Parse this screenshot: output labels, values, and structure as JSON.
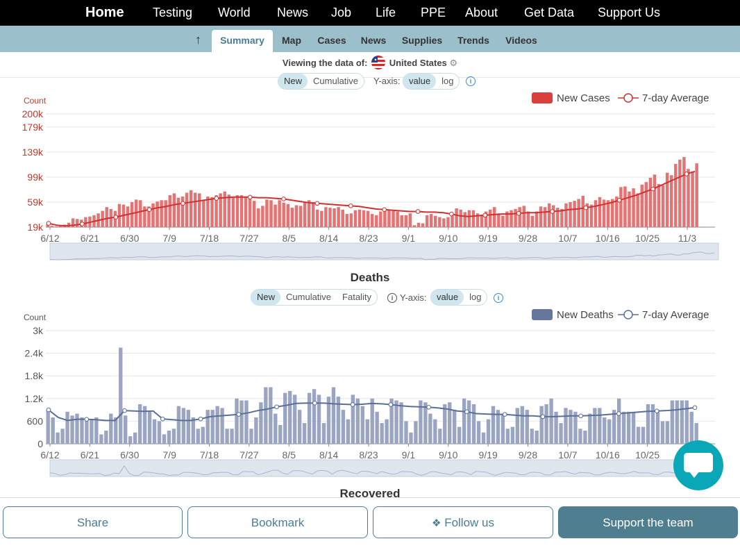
{
  "nav": {
    "items": [
      "Home",
      "Testing",
      "World",
      "News",
      "Job",
      "Life",
      "PPE",
      "About",
      "Get Data",
      "Support Us"
    ]
  },
  "subnav": {
    "tabs": [
      "Summary",
      "Map",
      "Cases",
      "News",
      "Supplies",
      "Trends",
      "Videos"
    ],
    "active": "Summary"
  },
  "viewing": {
    "prefix": "Viewing the data of:",
    "country": "United States"
  },
  "cases_panel": {
    "toggle_mode": [
      "New",
      "Cumulative"
    ],
    "yaxis_label": "Y-axis:",
    "toggle_scale": [
      "value",
      "log"
    ],
    "legend": [
      "New Cases",
      "7-day Average"
    ],
    "colors": {
      "bar": "#e57373",
      "line": "#d32f2f",
      "legend_bar": "#d9403b"
    }
  },
  "deaths_panel": {
    "title": "Deaths",
    "toggle_mode": [
      "New",
      "Cumulative",
      "Fatality"
    ],
    "yaxis_label": "Y-axis:",
    "toggle_scale": [
      "value",
      "log"
    ],
    "legend": [
      "New Deaths",
      "7-day Average"
    ],
    "colors": {
      "bar": "#9aa5c4",
      "line": "#5a6f96",
      "legend_bar": "#66769d"
    }
  },
  "recovered_title": "Recovered",
  "buttons": {
    "share": "Share",
    "bookmark": "Bookmark",
    "follow": "Follow us",
    "support": "Support the team"
  },
  "chart_data": [
    {
      "type": "bar",
      "ylabel": "Count",
      "yticks": [
        "19k",
        "59k",
        "99k",
        "139k",
        "179k",
        "200k"
      ],
      "ytick_values": [
        19000,
        59000,
        99000,
        139000,
        179000,
        200000
      ],
      "ylim": [
        19000,
        200000
      ],
      "x_tick_labels": [
        "6/12",
        "6/21",
        "6/30",
        "7/9",
        "7/18",
        "7/27",
        "8/5",
        "8/14",
        "8/23",
        "9/1",
        "9/10",
        "9/19",
        "9/28",
        "10/7",
        "10/16",
        "10/25",
        "11/3"
      ],
      "series": [
        {
          "name": "New Cases",
          "values": [
            25000,
            21000,
            20000,
            21000,
            23000,
            26000,
            33000,
            32000,
            31000,
            35000,
            36000,
            38000,
            41000,
            45000,
            51000,
            48000,
            45000,
            56000,
            55000,
            52000,
            59000,
            63000,
            62000,
            52000,
            52000,
            57000,
            60000,
            62000,
            62000,
            70000,
            73000,
            66000,
            68000,
            74000,
            78000,
            74000,
            73000,
            63000,
            68000,
            67000,
            70000,
            73000,
            76000,
            71000,
            66000,
            70000,
            70000,
            68000,
            64000,
            61000,
            49000,
            53000,
            63000,
            62000,
            55000,
            62000,
            58000,
            56000,
            50000,
            54000,
            53000,
            58000,
            62000,
            59000,
            47000,
            45000,
            51000,
            50000,
            49000,
            51000,
            47000,
            40000,
            41000,
            46000,
            47000,
            46000,
            45000,
            40000,
            38000,
            44000,
            48000,
            46000,
            45000,
            44000,
            38000,
            38000,
            41000,
            22000,
            26000,
            25000,
            38000,
            40000,
            37000,
            35000,
            33000,
            35000,
            40000,
            49000,
            47000,
            43000,
            46000,
            46000,
            41000,
            39000,
            44000,
            47000,
            51000,
            41000,
            37000,
            44000,
            46000,
            48000,
            51000,
            53000,
            44000,
            37000,
            44000,
            52000,
            51000,
            57000,
            54000,
            50000,
            48000,
            57000,
            59000,
            61000,
            64000,
            69000,
            57000,
            55000,
            62000,
            67000,
            63000,
            62000,
            64000,
            68000,
            83000,
            84000,
            76000,
            81000,
            73000,
            87000,
            91000,
            98000,
            103000,
            88000,
            86000,
            106000,
            102000,
            120000,
            127000,
            131000,
            112000,
            108000,
            121000
          ],
          "color": "#e57373"
        },
        {
          "name": "7-day Average",
          "values": [
            25000,
            22000,
            21000,
            22000,
            24000,
            27000,
            30000,
            33000,
            35000,
            38000,
            41000,
            44000,
            47000,
            50000,
            52000,
            55000,
            57000,
            59000,
            61000,
            63000,
            65000,
            66000,
            67000,
            67000,
            67000,
            66000,
            66000,
            65000,
            64000,
            62000,
            60000,
            58000,
            57000,
            56000,
            55000,
            54000,
            53000,
            52000,
            50000,
            48000,
            47000,
            46000,
            45000,
            44000,
            44000,
            43000,
            43000,
            42000,
            40000,
            37000,
            36000,
            37000,
            38000,
            39000,
            40000,
            40000,
            41000,
            42000,
            42000,
            43000,
            44000,
            45000,
            47000,
            48000,
            50000,
            52000,
            55000,
            58000,
            62000,
            66000,
            70000,
            75000,
            80000,
            86000,
            92000,
            98000,
            104000,
            108000
          ],
          "color": "#d32f2f"
        }
      ],
      "legend_position": "top-right"
    },
    {
      "type": "bar",
      "ylabel": "Count",
      "yticks": [
        "0",
        "600",
        "1.2k",
        "1.8k",
        "2.4k",
        "3k"
      ],
      "ytick_values": [
        0,
        600,
        1200,
        1800,
        2400,
        3000
      ],
      "ylim": [
        0,
        3000
      ],
      "x_tick_labels": [
        "6/12",
        "6/21",
        "6/30",
        "7/9",
        "7/18",
        "7/27",
        "8/5",
        "8/14",
        "8/23",
        "9/1",
        "9/10",
        "9/19",
        "9/28",
        "10/7",
        "10/16",
        "10/25",
        "11/3"
      ],
      "series": [
        {
          "name": "New Deaths",
          "values": [
            900,
            700,
            300,
            400,
            850,
            750,
            800,
            700,
            650,
            650,
            700,
            250,
            350,
            800,
            700,
            2550,
            750,
            200,
            300,
            1050,
            1000,
            850,
            650,
            600,
            250,
            350,
            400,
            1000,
            950,
            900,
            700,
            400,
            450,
            900,
            900,
            1000,
            950,
            400,
            400,
            1200,
            1150,
            1150,
            400,
            700,
            1100,
            1500,
            1500,
            800,
            500,
            1350,
            1400,
            1300,
            900,
            550,
            1350,
            1450,
            1300,
            550,
            1250,
            1500,
            1250,
            900,
            650,
            1300,
            1200,
            1000,
            650,
            1200,
            850,
            550,
            650,
            1200,
            1150,
            1100,
            600,
            300,
            600,
            1150,
            1100,
            800,
            650,
            400,
            1050,
            1100,
            900,
            450,
            1200,
            1150,
            1050,
            600,
            300,
            650,
            1000,
            900,
            800,
            400,
            450,
            950,
            1000,
            900,
            400,
            350,
            1000,
            1050,
            1200,
            850,
            550,
            950,
            900,
            850,
            400,
            350,
            800,
            950,
            950,
            700,
            650,
            900,
            1200,
            850,
            850,
            850,
            450,
            450,
            1050,
            1050,
            850,
            600,
            600,
            1150,
            1150,
            1150,
            1150,
            850,
            550
          ],
          "color": "#9aa5c4"
        },
        {
          "name": "7-day Average",
          "values": [
            900,
            700,
            620,
            650,
            650,
            640,
            620,
            620,
            880,
            870,
            860,
            870,
            660,
            640,
            620,
            620,
            660,
            720,
            740,
            760,
            780,
            820,
            880,
            920,
            980,
            1020,
            1070,
            1080,
            1080,
            1080,
            1060,
            1050,
            1040,
            1050,
            1070,
            1060,
            1040,
            1010,
            990,
            980,
            970,
            950,
            920,
            870,
            850,
            800,
            790,
            780,
            780,
            760,
            740,
            740,
            720,
            720,
            730,
            740,
            740,
            750,
            760,
            780,
            800,
            820,
            840,
            860,
            870,
            880,
            900,
            930,
            960
          ],
          "color": "#5a6f96"
        }
      ],
      "legend_position": "top-right"
    }
  ]
}
